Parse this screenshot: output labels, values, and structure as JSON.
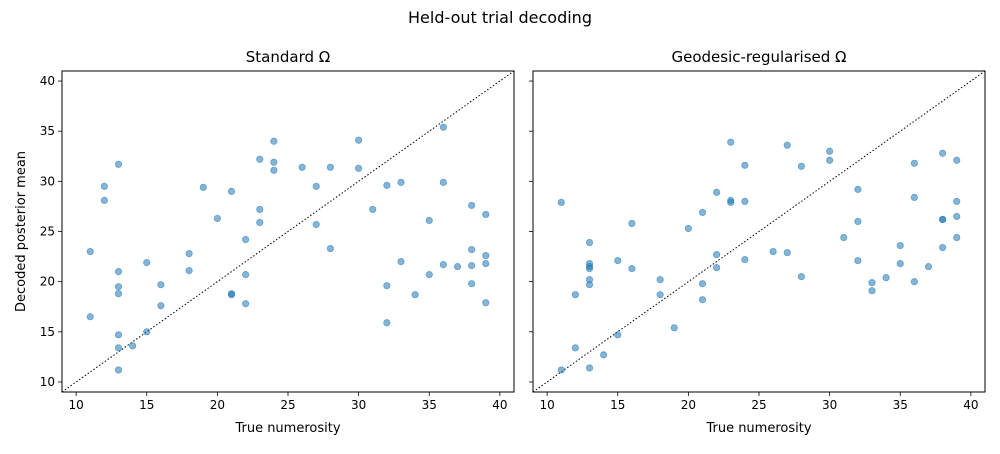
{
  "figure": {
    "suptitle": "Held-out trial decoding"
  },
  "chart_data": [
    {
      "type": "scatter",
      "title": "Standard Ω",
      "xlabel": "True numerosity",
      "ylabel": "Decoded posterior mean",
      "xlim": [
        9,
        41
      ],
      "ylim": [
        9,
        41
      ],
      "xticks": [
        10,
        15,
        20,
        25,
        30,
        35,
        40
      ],
      "yticks": [
        10,
        15,
        20,
        25,
        30,
        35,
        40
      ],
      "grid": false,
      "marker_color": "#1f77b4",
      "reference_line": {
        "style": "dotted",
        "x": [
          9,
          41
        ],
        "y": [
          9,
          41
        ]
      },
      "points": [
        [
          11,
          23.0
        ],
        [
          11,
          16.5
        ],
        [
          12,
          29.5
        ],
        [
          12,
          28.1
        ],
        [
          13,
          31.7
        ],
        [
          13,
          21.0
        ],
        [
          13,
          19.5
        ],
        [
          13,
          18.8
        ],
        [
          13,
          14.7
        ],
        [
          13,
          13.4
        ],
        [
          13,
          11.2
        ],
        [
          14,
          13.6
        ],
        [
          15,
          21.9
        ],
        [
          15,
          15.0
        ],
        [
          16,
          19.7
        ],
        [
          16,
          17.6
        ],
        [
          18,
          22.8
        ],
        [
          18,
          21.1
        ],
        [
          19,
          29.4
        ],
        [
          20,
          26.3
        ],
        [
          21,
          29.0
        ],
        [
          21,
          18.8
        ],
        [
          21,
          18.7
        ],
        [
          22,
          24.2
        ],
        [
          22,
          20.7
        ],
        [
          22,
          17.8
        ],
        [
          23,
          32.2
        ],
        [
          23,
          27.2
        ],
        [
          23,
          25.9
        ],
        [
          24,
          34.0
        ],
        [
          24,
          31.9
        ],
        [
          24,
          31.1
        ],
        [
          26,
          31.4
        ],
        [
          27,
          29.5
        ],
        [
          27,
          25.7
        ],
        [
          28,
          31.4
        ],
        [
          28,
          23.3
        ],
        [
          30,
          34.1
        ],
        [
          30,
          31.3
        ],
        [
          31,
          27.2
        ],
        [
          32,
          29.6
        ],
        [
          32,
          19.6
        ],
        [
          32,
          15.9
        ],
        [
          33,
          29.9
        ],
        [
          33,
          22.0
        ],
        [
          34,
          18.7
        ],
        [
          35,
          26.1
        ],
        [
          35,
          20.7
        ],
        [
          36,
          35.4
        ],
        [
          36,
          29.9
        ],
        [
          36,
          21.7
        ],
        [
          37,
          21.5
        ],
        [
          38,
          27.6
        ],
        [
          38,
          23.2
        ],
        [
          38,
          21.6
        ],
        [
          38,
          19.8
        ],
        [
          39,
          26.7
        ],
        [
          39,
          22.6
        ],
        [
          39,
          21.8
        ],
        [
          39,
          17.9
        ]
      ]
    },
    {
      "type": "scatter",
      "title": "Geodesic-regularised Ω",
      "xlabel": "True numerosity",
      "ylabel": "",
      "xlim": [
        9,
        41
      ],
      "ylim": [
        9,
        41
      ],
      "xticks": [
        10,
        15,
        20,
        25,
        30,
        35,
        40
      ],
      "yticks": [
        10,
        15,
        20,
        25,
        30,
        35,
        40
      ],
      "grid": false,
      "marker_color": "#1f77b4",
      "reference_line": {
        "style": "dotted",
        "x": [
          9,
          41
        ],
        "y": [
          9,
          41
        ]
      },
      "points": [
        [
          11,
          27.9
        ],
        [
          11,
          11.2
        ],
        [
          12,
          18.7
        ],
        [
          12,
          13.4
        ],
        [
          13,
          23.9
        ],
        [
          13,
          21.8
        ],
        [
          13,
          21.5
        ],
        [
          13,
          21.3
        ],
        [
          13,
          20.2
        ],
        [
          13,
          19.7
        ],
        [
          13,
          11.4
        ],
        [
          14,
          12.7
        ],
        [
          15,
          22.1
        ],
        [
          15,
          14.7
        ],
        [
          16,
          25.8
        ],
        [
          16,
          21.3
        ],
        [
          18,
          20.2
        ],
        [
          18,
          18.7
        ],
        [
          19,
          15.4
        ],
        [
          20,
          25.3
        ],
        [
          21,
          26.9
        ],
        [
          21,
          19.8
        ],
        [
          21,
          18.2
        ],
        [
          22,
          28.9
        ],
        [
          22,
          22.7
        ],
        [
          22,
          21.4
        ],
        [
          23,
          33.9
        ],
        [
          23,
          28.1
        ],
        [
          23,
          27.9
        ],
        [
          24,
          31.6
        ],
        [
          24,
          28.0
        ],
        [
          24,
          22.2
        ],
        [
          26,
          23.0
        ],
        [
          27,
          33.6
        ],
        [
          27,
          22.9
        ],
        [
          28,
          31.5
        ],
        [
          28,
          20.5
        ],
        [
          30,
          33.0
        ],
        [
          30,
          32.1
        ],
        [
          31,
          24.4
        ],
        [
          32,
          29.2
        ],
        [
          32,
          26.0
        ],
        [
          32,
          22.1
        ],
        [
          33,
          19.9
        ],
        [
          33,
          19.1
        ],
        [
          34,
          20.4
        ],
        [
          35,
          23.6
        ],
        [
          35,
          21.8
        ],
        [
          36,
          31.8
        ],
        [
          36,
          28.4
        ],
        [
          36,
          20.0
        ],
        [
          37,
          21.5
        ],
        [
          38,
          32.8
        ],
        [
          38,
          26.2
        ],
        [
          38,
          26.2
        ],
        [
          38,
          23.4
        ],
        [
          39,
          32.1
        ],
        [
          39,
          28.0
        ],
        [
          39,
          26.5
        ],
        [
          39,
          24.4
        ]
      ]
    }
  ]
}
